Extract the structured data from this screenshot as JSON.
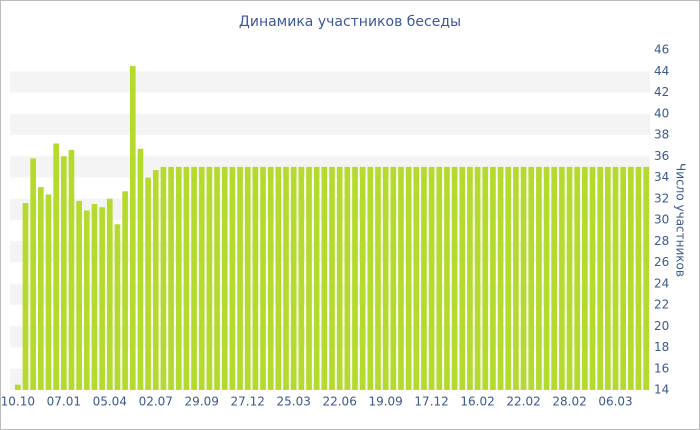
{
  "chart_data": {
    "type": "bar",
    "title": "Динамика участников беседы",
    "y_label": "Число участников",
    "categories": [
      "10.10",
      null,
      null,
      null,
      null,
      null,
      "07.01",
      null,
      null,
      null,
      null,
      null,
      "05.04",
      null,
      null,
      null,
      null,
      null,
      "02.07",
      null,
      null,
      null,
      null,
      null,
      "29.09",
      null,
      null,
      null,
      null,
      null,
      "27.12",
      null,
      null,
      null,
      null,
      null,
      "25.03",
      null,
      null,
      null,
      null,
      null,
      "22.06",
      null,
      null,
      null,
      null,
      null,
      "19.09",
      null,
      null,
      null,
      null,
      null,
      "17.12",
      null,
      null,
      null,
      null,
      null,
      "16.02",
      null,
      null,
      null,
      null,
      null,
      "22.02",
      null,
      null,
      null,
      null,
      null,
      "28.02",
      null,
      null,
      null,
      null,
      null,
      "06.03",
      null,
      null,
      null,
      null
    ],
    "values": [
      14.5,
      31.6,
      35.8,
      33.1,
      32.4,
      37.2,
      36,
      36.6,
      31.8,
      30.9,
      31.5,
      31.2,
      32,
      29.6,
      32.7,
      44.5,
      36.7,
      34,
      34.7,
      35,
      35,
      35,
      35,
      35,
      35,
      35,
      35,
      35,
      35,
      35,
      35,
      35,
      35,
      35,
      35,
      35,
      35,
      35,
      35,
      35,
      35,
      35,
      35,
      35,
      35,
      35,
      35,
      35,
      35,
      35,
      35,
      35,
      35,
      35,
      35,
      35,
      35,
      35,
      35,
      35,
      35,
      35,
      35,
      35,
      35,
      35,
      35,
      35,
      35,
      35,
      35,
      35,
      35,
      35,
      35,
      35,
      35,
      35,
      35,
      35,
      35,
      35,
      35
    ],
    "color": "#b5da2e",
    "ylim": [
      14,
      46
    ],
    "yticks": [
      14,
      16,
      18,
      20,
      22,
      24,
      26,
      28,
      30,
      32,
      34,
      36,
      38,
      40,
      42,
      44,
      46
    ],
    "grid": true
  }
}
